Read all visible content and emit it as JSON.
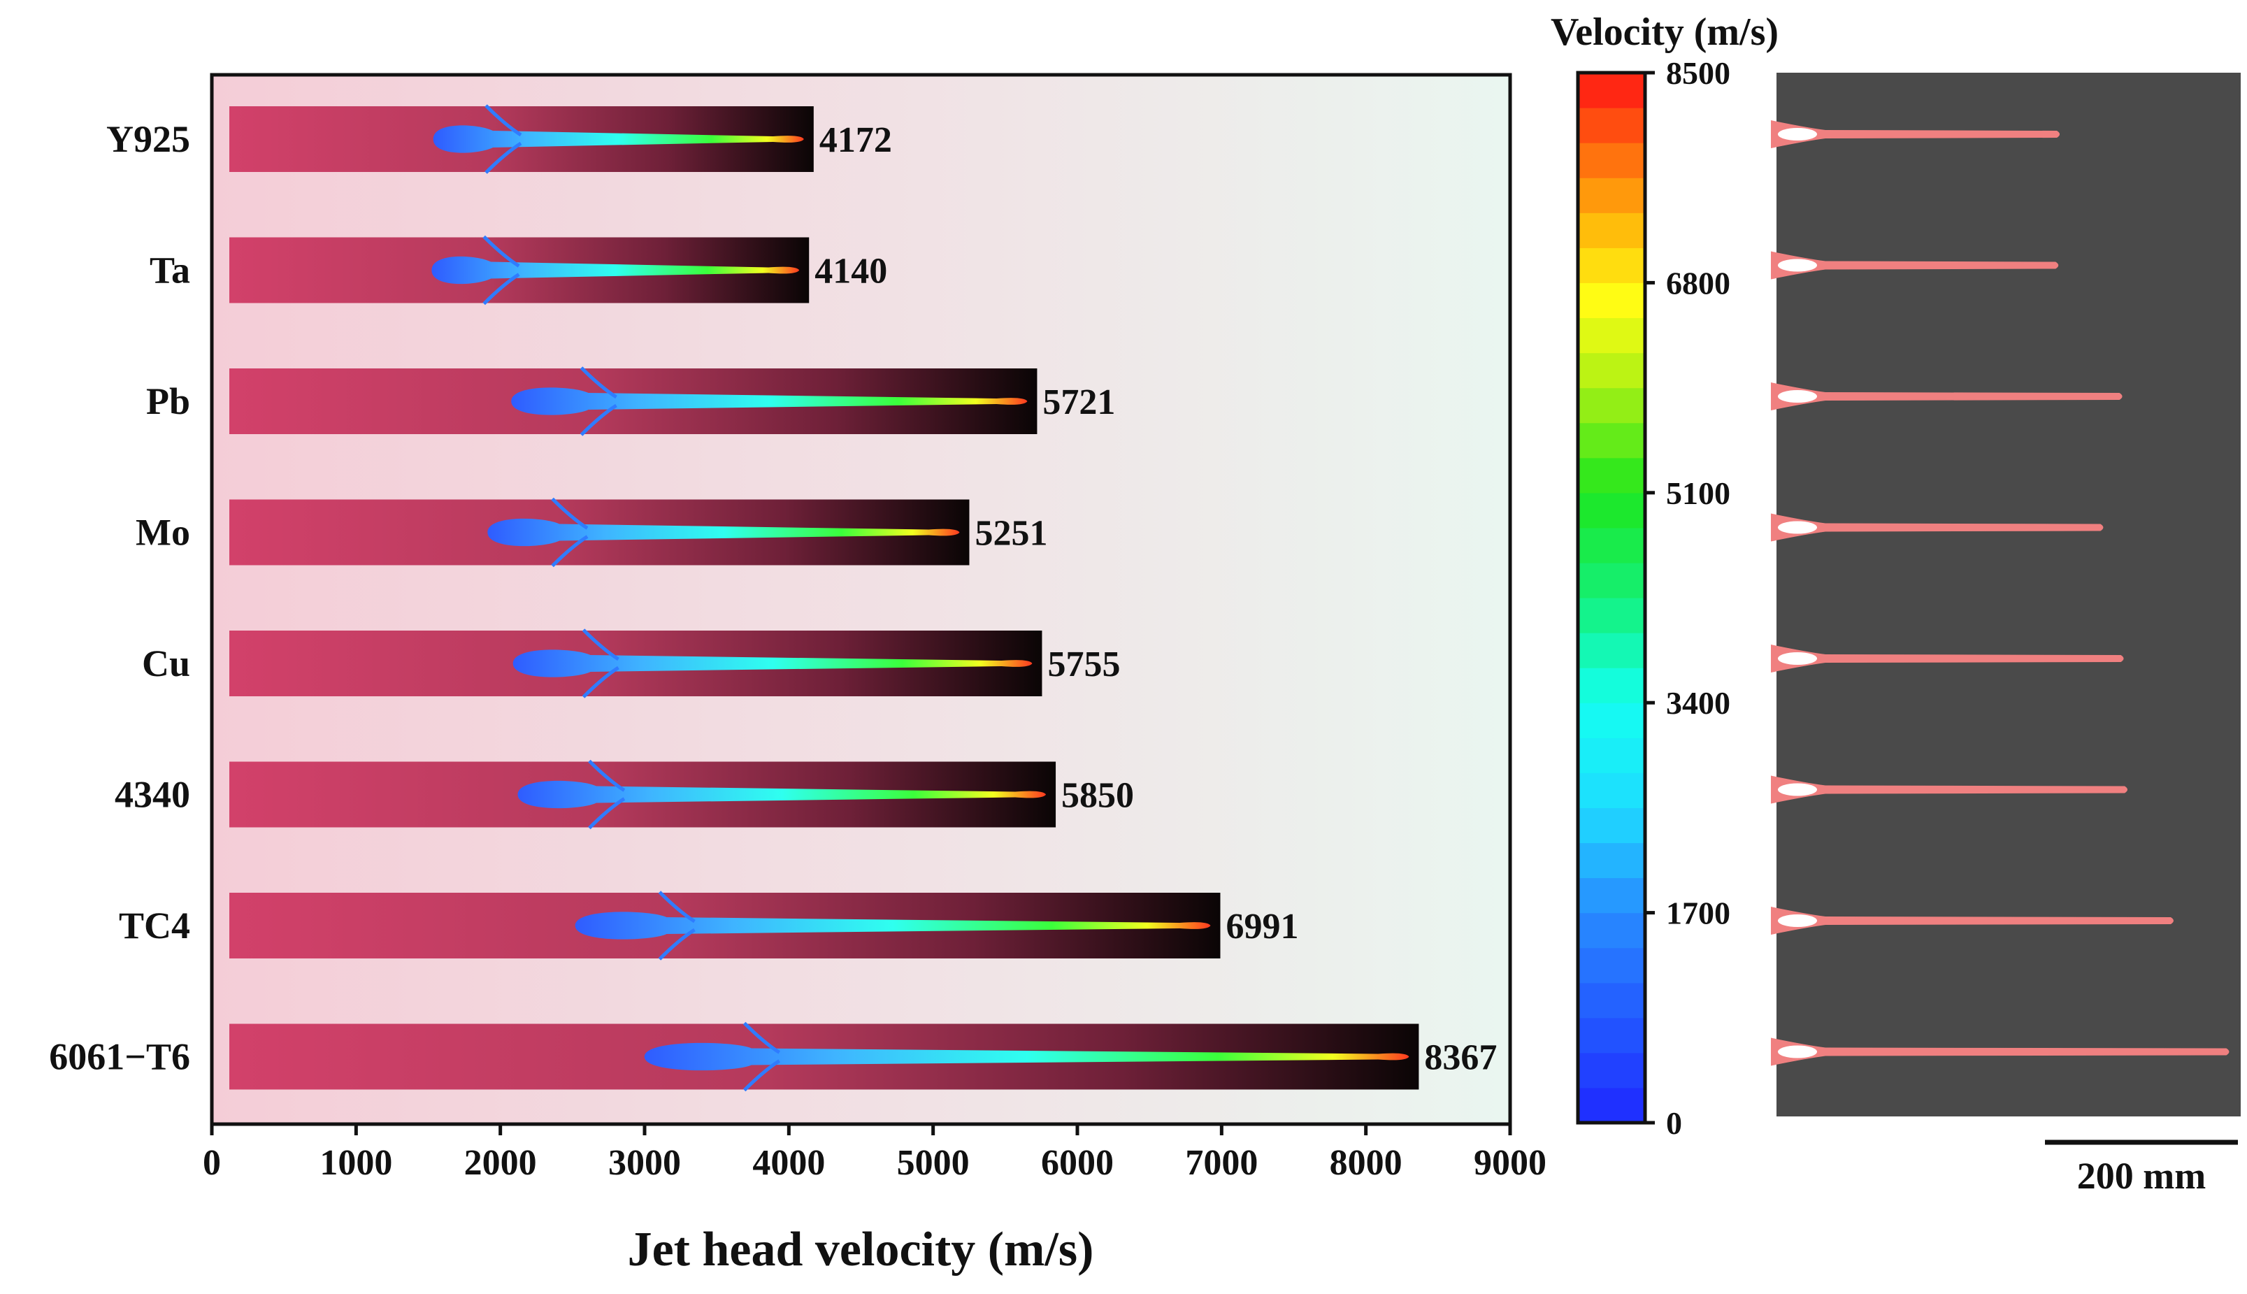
{
  "chart_data": {
    "type": "bar",
    "orientation": "horizontal",
    "title": "",
    "xlabel": "Jet head velocity (m/s)",
    "ylabel": "",
    "xlim": [
      0,
      9000
    ],
    "xticks": [
      "0",
      "1000",
      "2000",
      "3000",
      "4000",
      "5000",
      "6000",
      "7000",
      "8000",
      "9000"
    ],
    "categories": [
      "Y925",
      "Ta",
      "Pb",
      "Mo",
      "Cu",
      "4340",
      "TC4",
      "6061−T6"
    ],
    "values": [
      4172,
      4140,
      5721,
      5251,
      5755,
      5850,
      6991,
      8367
    ],
    "value_labels": [
      "4172",
      "4140",
      "5721",
      "5251",
      "5755",
      "5850",
      "6991",
      "8367"
    ],
    "grid": false,
    "colorbar": {
      "title": "Velocity (m/s)",
      "range": [
        0,
        8500
      ],
      "ticks": [
        "0",
        "1700",
        "3400",
        "5100",
        "6800",
        "8500"
      ],
      "bands": 30
    },
    "scale_bar_label": "200 mm"
  },
  "colors": {
    "bar_start": "#d04064",
    "bar_mid": "#7a2440",
    "bar_end": "#0a0505",
    "plot_bg_left": "#f2ccd6",
    "plot_bg_right": "#eaf6f0",
    "sim_panel_bg": "#4a4a4a",
    "sim_jet": "#f08080"
  }
}
